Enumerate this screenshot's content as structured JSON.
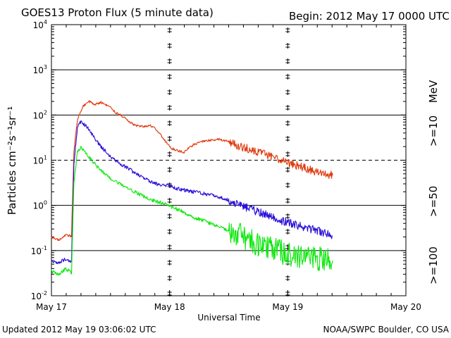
{
  "chart_data": {
    "type": "line",
    "title": "GOES13 Proton Flux (5 minute data)",
    "begin_label": "Begin: 2012 May 17 0000 UTC",
    "ylabel": "Particles cm⁻²s⁻¹sr⁻¹",
    "xlabel": "Universal Time",
    "x_ticks": [
      {
        "label": "May 17",
        "value": 0
      },
      {
        "label": "May 18",
        "value": 1
      },
      {
        "label": "May 19",
        "value": 2
      },
      {
        "label": "May 20",
        "value": 3
      }
    ],
    "y_ticks": [
      {
        "exponent": -2,
        "label": "10-2",
        "value": 0.01
      },
      {
        "exponent": -1,
        "label": "10-1",
        "value": 0.1
      },
      {
        "exponent": 0,
        "label": "100",
        "value": 1
      },
      {
        "exponent": 1,
        "label": "101",
        "value": 10
      },
      {
        "exponent": 2,
        "label": "102",
        "value": 100
      },
      {
        "exponent": 3,
        "label": "103",
        "value": 1000
      },
      {
        "exponent": 4,
        "label": "104",
        "value": 10000
      }
    ],
    "x_range_days": [
      0,
      3
    ],
    "y_range": [
      0.01,
      10000
    ],
    "y_scale": "log",
    "threshold_value": 10,
    "series": [
      {
        "name": ">=10 MeV",
        "legend_label": ">=10",
        "unit_label": "MeV",
        "color": "#e03c10",
        "points": [
          [
            0.0,
            0.2
          ],
          [
            0.06,
            0.17
          ],
          [
            0.12,
            0.22
          ],
          [
            0.17,
            0.21
          ],
          [
            0.19,
            15
          ],
          [
            0.22,
            80
          ],
          [
            0.27,
            160
          ],
          [
            0.32,
            200
          ],
          [
            0.37,
            170
          ],
          [
            0.42,
            190
          ],
          [
            0.48,
            160
          ],
          [
            0.55,
            110
          ],
          [
            0.6,
            95
          ],
          [
            0.65,
            75
          ],
          [
            0.7,
            60
          ],
          [
            0.78,
            55
          ],
          [
            0.83,
            60
          ],
          [
            0.88,
            50
          ],
          [
            0.93,
            35
          ],
          [
            0.97,
            25
          ],
          [
            1.02,
            18
          ],
          [
            1.08,
            16
          ],
          [
            1.12,
            15
          ],
          [
            1.2,
            22
          ],
          [
            1.3,
            27
          ],
          [
            1.38,
            28
          ],
          [
            1.42,
            29
          ],
          [
            1.5,
            26
          ],
          [
            1.6,
            20
          ],
          [
            1.7,
            17
          ],
          [
            1.8,
            14
          ],
          [
            1.9,
            11
          ],
          [
            2.0,
            8.7
          ],
          [
            2.1,
            7.3
          ],
          [
            2.2,
            6.0
          ],
          [
            2.3,
            5.0
          ],
          [
            2.38,
            4.6
          ]
        ]
      },
      {
        "name": ">=50 MeV",
        "legend_label": ">=50",
        "unit_label": "",
        "color": "#2a10d8",
        "points": [
          [
            0.0,
            0.06
          ],
          [
            0.06,
            0.055
          ],
          [
            0.12,
            0.065
          ],
          [
            0.17,
            0.055
          ],
          [
            0.19,
            8
          ],
          [
            0.22,
            55
          ],
          [
            0.25,
            70
          ],
          [
            0.3,
            55
          ],
          [
            0.35,
            35
          ],
          [
            0.42,
            20
          ],
          [
            0.5,
            12
          ],
          [
            0.58,
            8.5
          ],
          [
            0.65,
            6.5
          ],
          [
            0.72,
            5
          ],
          [
            0.8,
            3.8
          ],
          [
            0.88,
            3
          ],
          [
            0.95,
            2.8
          ],
          [
            1.0,
            2.7
          ],
          [
            1.05,
            2.4
          ],
          [
            1.12,
            2.2
          ],
          [
            1.2,
            2.0
          ],
          [
            1.3,
            1.8
          ],
          [
            1.4,
            1.6
          ],
          [
            1.5,
            1.3
          ],
          [
            1.6,
            1.0
          ],
          [
            1.7,
            0.8
          ],
          [
            1.8,
            0.65
          ],
          [
            1.9,
            0.5
          ],
          [
            2.0,
            0.42
          ],
          [
            2.1,
            0.35
          ],
          [
            2.2,
            0.3
          ],
          [
            2.3,
            0.25
          ],
          [
            2.38,
            0.21
          ]
        ]
      },
      {
        "name": ">=100 MeV",
        "legend_label": ">=100",
        "unit_label": "",
        "color": "#10e810",
        "points": [
          [
            0.0,
            0.035
          ],
          [
            0.06,
            0.03
          ],
          [
            0.12,
            0.04
          ],
          [
            0.17,
            0.032
          ],
          [
            0.19,
            3
          ],
          [
            0.22,
            16
          ],
          [
            0.25,
            19
          ],
          [
            0.3,
            14
          ],
          [
            0.35,
            9
          ],
          [
            0.42,
            6
          ],
          [
            0.5,
            4
          ],
          [
            0.58,
            3
          ],
          [
            0.65,
            2.3
          ],
          [
            0.72,
            1.9
          ],
          [
            0.78,
            1.6
          ],
          [
            0.85,
            1.3
          ],
          [
            0.95,
            1.1
          ],
          [
            1.05,
            0.85
          ],
          [
            1.1,
            0.75
          ],
          [
            1.2,
            0.55
          ],
          [
            1.3,
            0.45
          ],
          [
            1.4,
            0.35
          ],
          [
            1.5,
            0.28
          ],
          [
            1.6,
            0.22
          ],
          [
            1.7,
            0.16
          ],
          [
            1.8,
            0.12
          ],
          [
            1.9,
            0.1
          ],
          [
            2.0,
            0.085
          ],
          [
            2.1,
            0.075
          ],
          [
            2.2,
            0.07
          ],
          [
            2.3,
            0.065
          ],
          [
            2.38,
            0.06
          ]
        ]
      }
    ]
  },
  "footer": {
    "updated": "Updated 2012 May 19 03:06:02 UTC",
    "source": "NOAA/SWPC Boulder, CO USA"
  }
}
